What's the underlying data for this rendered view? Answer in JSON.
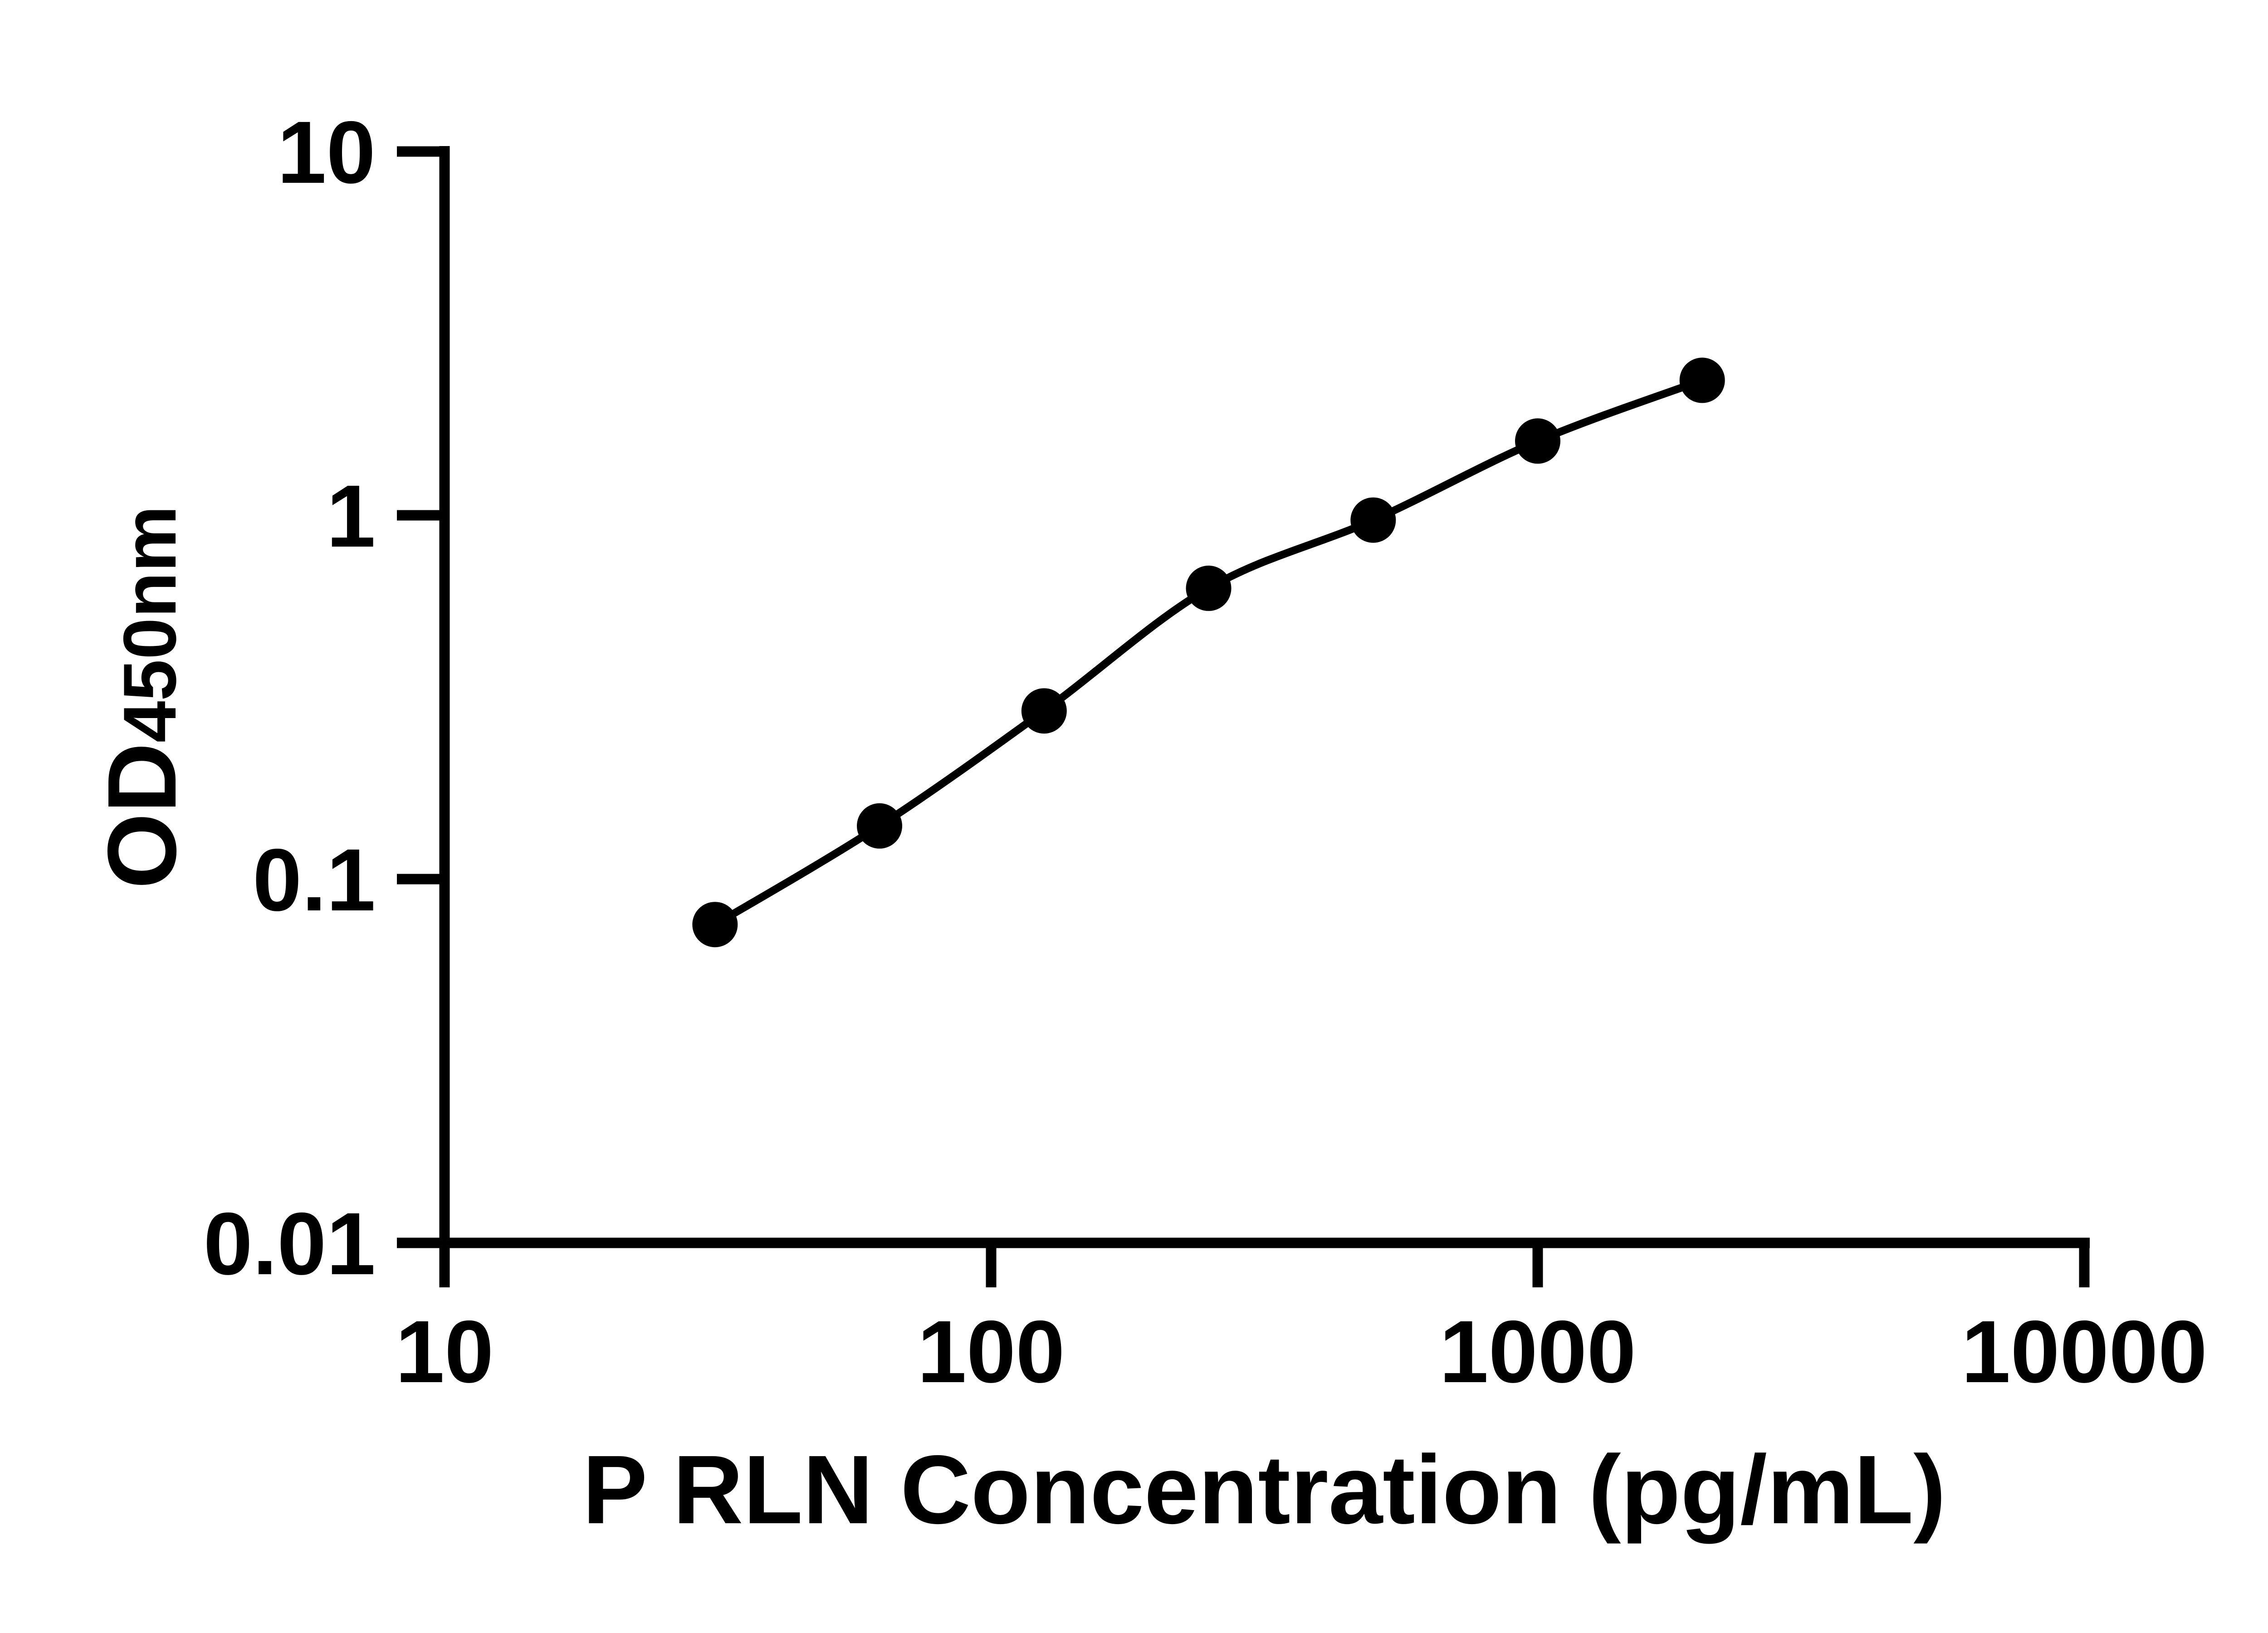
{
  "figure": {
    "background_color": "#ffffff",
    "ink_color": "#000000"
  },
  "chart_data": {
    "type": "scatter",
    "title": "",
    "xlabel": "P RLN Concentration (pg/mL)",
    "ylabel": "OD450nm",
    "ylabel_main": "OD",
    "ylabel_sub": "450nm",
    "x_scale": "log10",
    "y_scale": "log10",
    "xlim": [
      10,
      10000
    ],
    "ylim": [
      0.01,
      10
    ],
    "x_tick_values": [
      10,
      100,
      1000,
      10000
    ],
    "x_tick_labels": [
      "10",
      "100",
      "1000",
      "10000"
    ],
    "y_tick_values": [
      10,
      1,
      0.1,
      0.01
    ],
    "y_tick_labels": [
      "10",
      "1",
      "0.1",
      "0.01"
    ],
    "grid": false,
    "legend": false,
    "series": [
      {
        "x": [
          31.25,
          62.5,
          125,
          250,
          500,
          1000,
          2000
        ],
        "y": [
          0.075,
          0.14,
          0.29,
          0.63,
          0.97,
          1.6,
          2.35
        ],
        "marker": "filled-circle",
        "line": "smooth-fit-curve",
        "color": "#000000"
      }
    ]
  }
}
